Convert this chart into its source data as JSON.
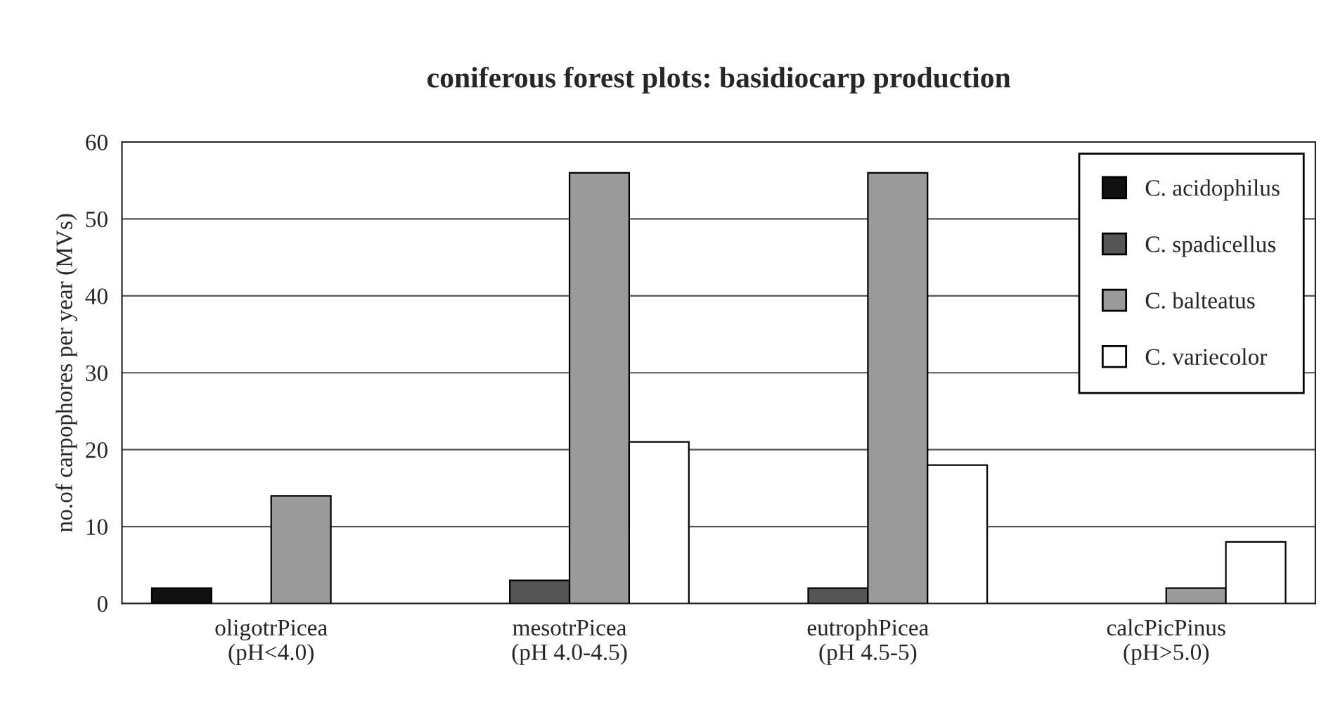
{
  "chart_data": {
    "type": "bar",
    "title": "coniferous forest plots: basidiocarp production",
    "ylabel": "no.of carpophores per year (MVs)",
    "categories": [
      "oligotrPicea\n(pH<4.0)",
      "mesotrPicea\n(pH 4.0-4.5)",
      "eutrophPicea\n(pH 4.5-5)",
      "calcPicPinus\n(pH>5.0)"
    ],
    "series": [
      {
        "name": "C. acidophilus",
        "color": "#111111",
        "values": [
          2,
          null,
          null,
          null
        ]
      },
      {
        "name": "C. spadicellus",
        "color": "#555555",
        "values": [
          null,
          3,
          2,
          null
        ]
      },
      {
        "name": "C. balteatus",
        "color": "#9a9a9a",
        "values": [
          14,
          56,
          56,
          2
        ]
      },
      {
        "name": "C. variecolor",
        "color": "#ffffff",
        "values": [
          null,
          21,
          18,
          8
        ]
      }
    ],
    "ylim": [
      0,
      60
    ],
    "yticks": [
      0,
      10,
      20,
      30,
      40,
      50,
      60
    ],
    "grid": "y",
    "legend": "top right"
  }
}
